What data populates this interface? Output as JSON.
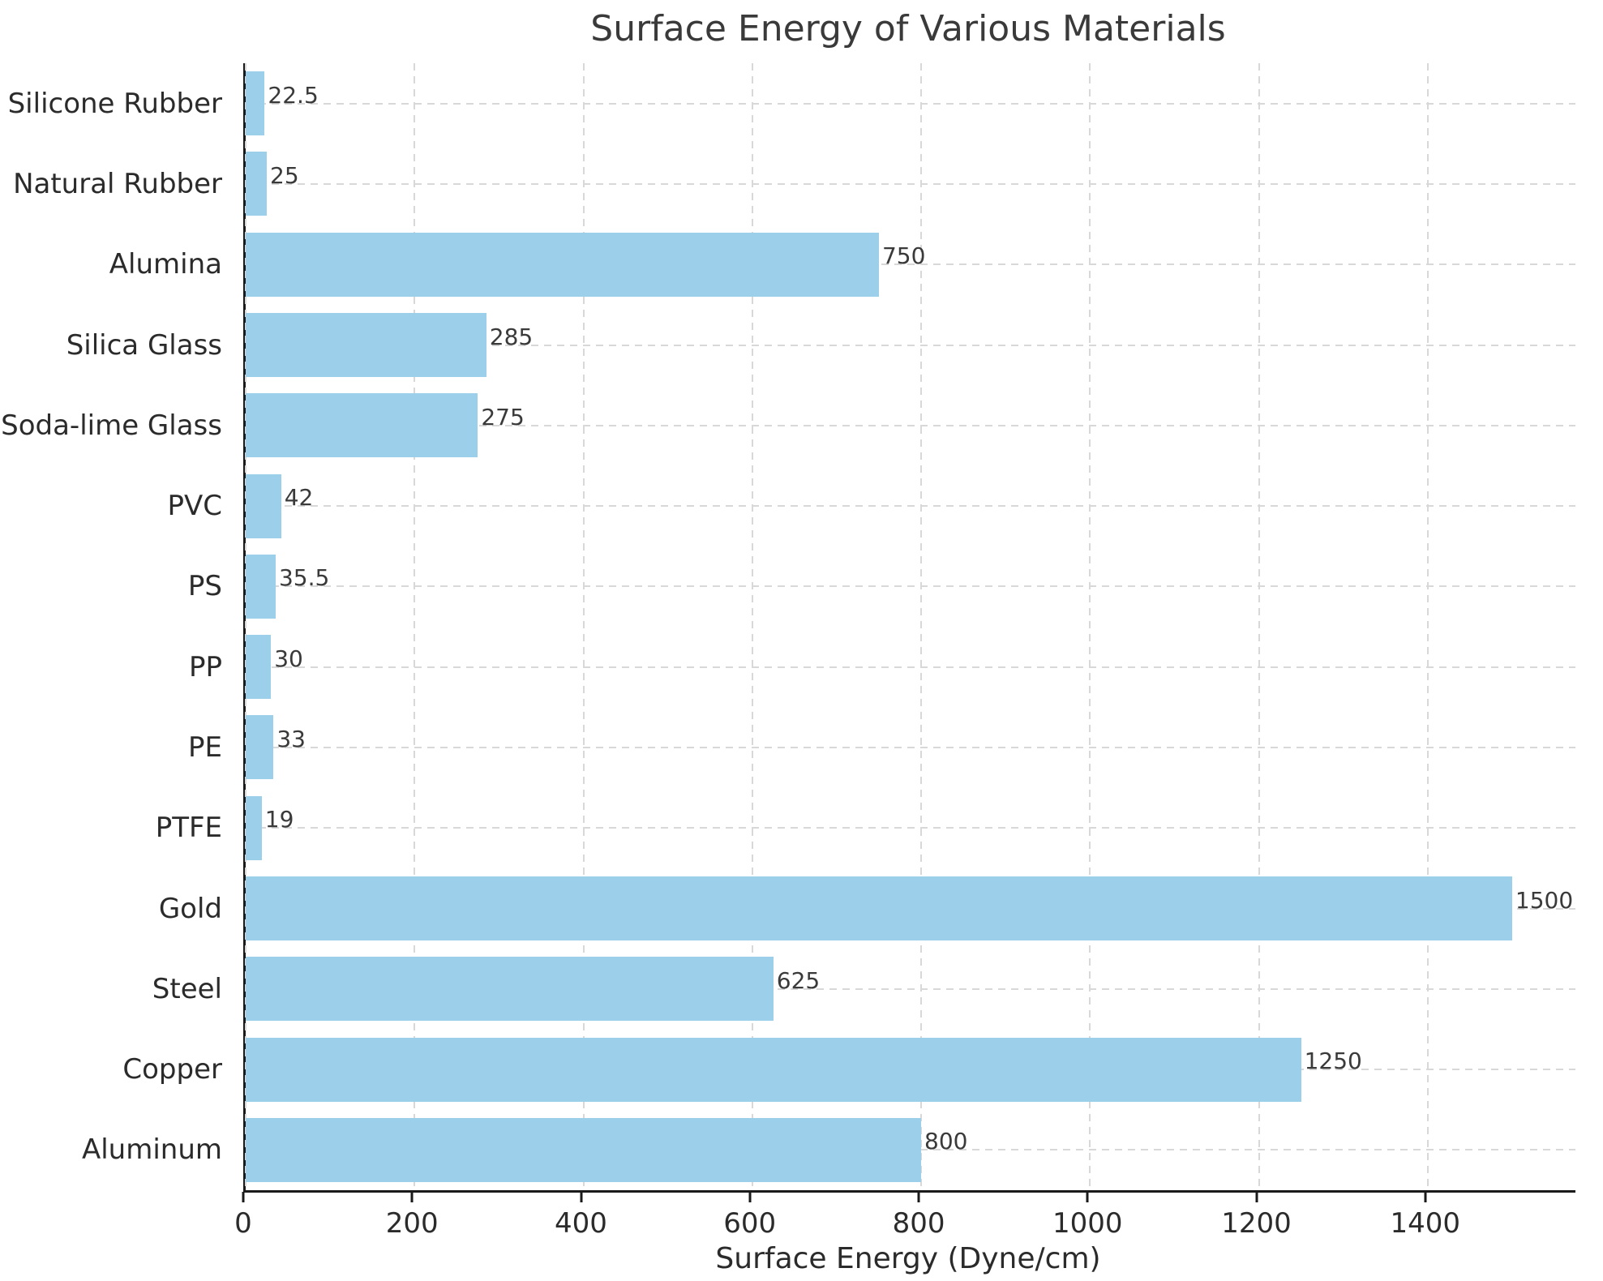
{
  "chart_data": {
    "type": "bar",
    "orientation": "horizontal",
    "title": "Surface Energy of Various Materials",
    "xlabel": "Surface Energy (Dyne/cm)",
    "ylabel": "",
    "categories_top_to_bottom": [
      "Silicone Rubber",
      "Natural Rubber",
      "Alumina",
      "Silica Glass",
      "Soda-lime Glass",
      "PVC",
      "PS",
      "PP",
      "PE",
      "PTFE",
      "Gold",
      "Steel",
      "Copper",
      "Aluminum"
    ],
    "values": [
      22.5,
      25,
      750,
      285,
      275,
      42,
      35.5,
      30,
      33,
      19,
      1500,
      625,
      1250,
      800
    ],
    "xlim": [
      0,
      1575
    ],
    "xticks": [
      0,
      200,
      400,
      600,
      800,
      1000,
      1200,
      1400
    ],
    "bar_color": "#9CCFE9",
    "grid": "dashed-both-axes",
    "value_labels": true,
    "text_color": "#3a3a3a",
    "background_color": "#ffffff",
    "legend": "none"
  }
}
